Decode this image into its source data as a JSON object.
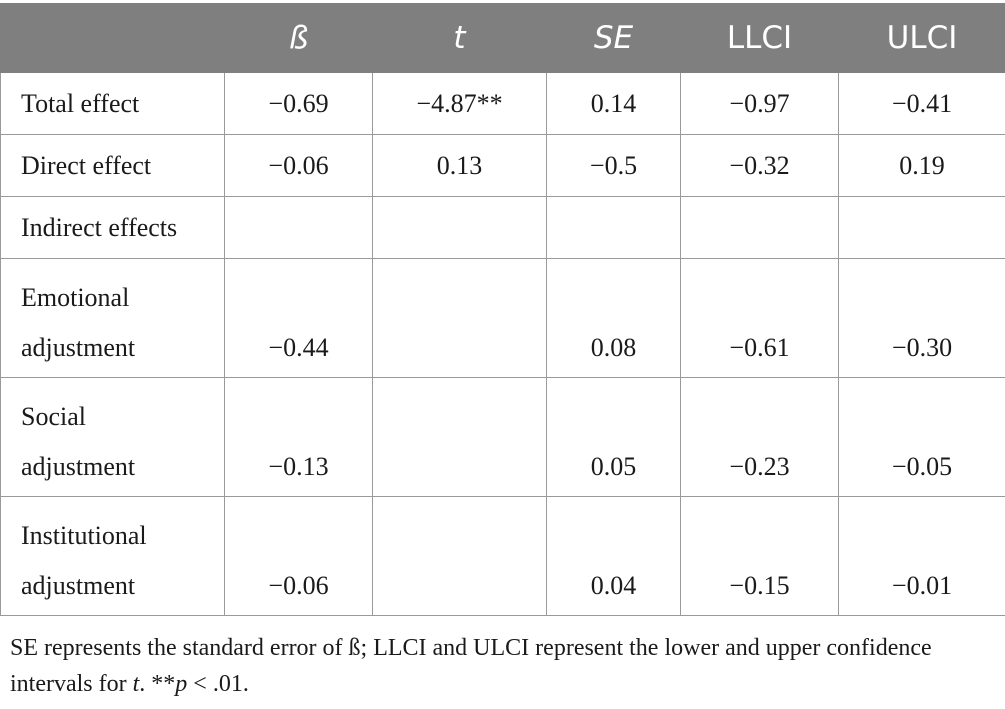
{
  "table": {
    "headers": [
      "",
      "ß",
      "t",
      "SE",
      "LLCI",
      "ULCI"
    ],
    "rows": [
      {
        "label": "Total effect",
        "values": [
          "−0.69",
          "−4.87**",
          "0.14",
          "−0.97",
          "−0.41"
        ]
      },
      {
        "label": "Direct effect",
        "values": [
          "−0.06",
          "0.13",
          "−0.5",
          "−0.32",
          "0.19"
        ]
      },
      {
        "label": "Indirect effects",
        "values": [
          "",
          "",
          "",
          "",
          ""
        ]
      },
      {
        "label_line1": "Emotional",
        "label_line2": "adjustment",
        "values": [
          "−0.44",
          "",
          "0.08",
          "−0.61",
          "−0.30"
        ]
      },
      {
        "label_line1": "Social",
        "label_line2": "adjustment",
        "values": [
          "−0.13",
          "",
          "0.05",
          "−0.23",
          "−0.05"
        ]
      },
      {
        "label_line1": "Institutional",
        "label_line2": "adjustment",
        "values": [
          "−0.06",
          "",
          "0.04",
          "−0.15",
          "−0.01"
        ]
      }
    ]
  },
  "footnote": {
    "part1": "SE represents the standard error of ß; LLCI and ULCI represent the lower and upper confidence intervals for ",
    "t": "t",
    "part2": ". **",
    "p": "p",
    "part3": " < .01."
  }
}
